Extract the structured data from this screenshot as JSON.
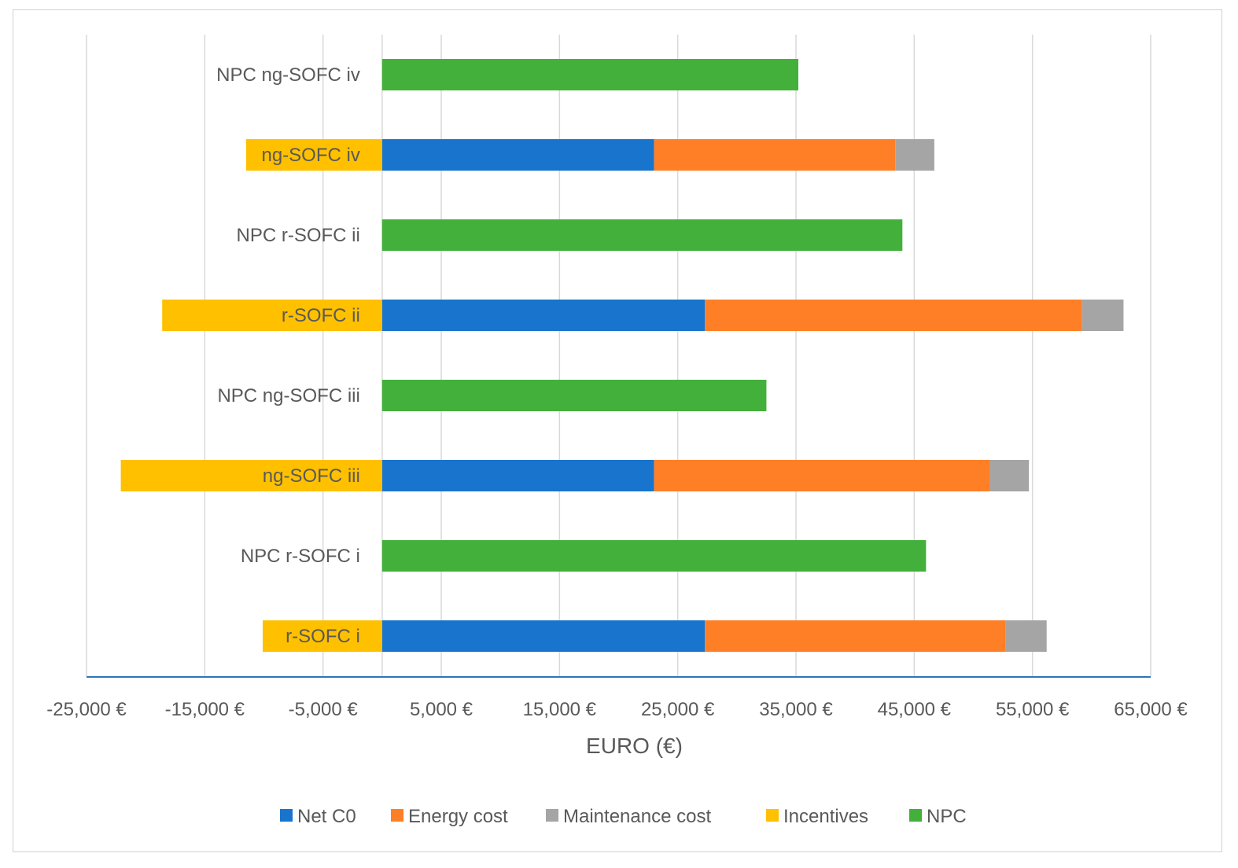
{
  "chart_data": {
    "type": "bar",
    "orientation": "horizontal",
    "stacked": true,
    "title": "",
    "xlabel": "EURO (€)",
    "ylabel": "",
    "xlim": [
      -25000,
      65000
    ],
    "x_ticks": [
      -25000,
      -15000,
      -5000,
      5000,
      15000,
      25000,
      35000,
      45000,
      55000,
      65000
    ],
    "x_tick_labels": [
      "-25,000 €",
      "-15,000 €",
      "-5,000 €",
      "5,000 €",
      "15,000 €",
      "25,000 €",
      "35,000 €",
      "45,000 €",
      "55,000 €",
      "65,000 €"
    ],
    "grid": "vertical",
    "legend_position": "bottom",
    "categories": [
      "NPC ng-SOFC iv",
      "ng-SOFC iv",
      "NPC r-SOFC ii",
      "r-SOFC ii",
      "NPC ng-SOFC iii",
      "ng-SOFC iii",
      "NPC r-SOFC i",
      "r-SOFC i"
    ],
    "series": [
      {
        "name": "Net C0",
        "color": "#1874CD",
        "values": [
          0,
          23000,
          0,
          27300,
          0,
          23000,
          0,
          27300
        ]
      },
      {
        "name": "Energy cost",
        "color": "#FF7F27",
        "values": [
          0,
          20400,
          0,
          31900,
          0,
          28400,
          0,
          25400
        ]
      },
      {
        "name": "Maintenance cost",
        "color": "#A5A5A5",
        "values": [
          0,
          3300,
          0,
          3500,
          0,
          3300,
          0,
          3500
        ]
      },
      {
        "name": "Incentives",
        "color": "#FFC000",
        "values": [
          0,
          -11500,
          0,
          -18600,
          0,
          -22100,
          0,
          -10100
        ]
      },
      {
        "name": "NPC",
        "color": "#43B03C",
        "values": [
          35200,
          0,
          44000,
          0,
          32500,
          0,
          46000,
          0
        ]
      }
    ]
  }
}
